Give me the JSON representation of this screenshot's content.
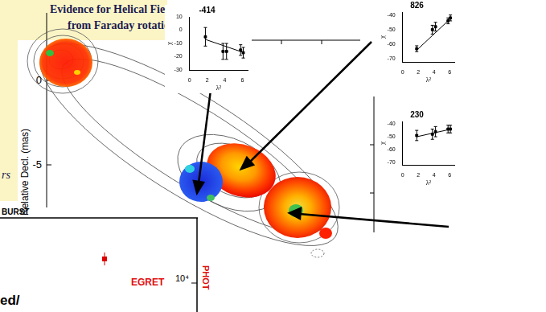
{
  "chart_data": [
    {
      "type": "scatter",
      "title": "-414",
      "xlabel": "λ²",
      "ylabel": "χ",
      "x": [
        1.8,
        3.8,
        4.2,
        5.8,
        6.1
      ],
      "values": [
        -5,
        -16,
        -16,
        -15,
        -17
      ],
      "errors": [
        7,
        6,
        6,
        4,
        4
      ],
      "fit_x": [
        1.8,
        6.2
      ],
      "fit_values": [
        -7,
        -17
      ],
      "xlim": [
        0,
        6.6
      ],
      "ylim": [
        -30,
        10
      ],
      "xticks": [
        0,
        2,
        4,
        6
      ],
      "yticks": [
        -30,
        -20,
        -10,
        0,
        10
      ],
      "color": "#000000",
      "marker": "square",
      "grid": false
    },
    {
      "type": "scatter",
      "title": "826",
      "xlabel": "λ²",
      "ylabel": "χ",
      "x": [
        1.8,
        3.8,
        4.2,
        5.8,
        6.1
      ],
      "values": [
        -63,
        -50,
        -48,
        -44,
        -42
      ],
      "errors": [
        2,
        3,
        3,
        2,
        2
      ],
      "fit_x": [
        1.8,
        6.2
      ],
      "fit_values": [
        -64,
        -42
      ],
      "xlim": [
        0,
        6.6
      ],
      "ylim": [
        -72,
        -38
      ],
      "xticks": [
        0,
        2,
        4,
        6
      ],
      "yticks": [
        -70,
        -60,
        -50,
        -40
      ],
      "color": "#000000",
      "marker": "square",
      "grid": false
    },
    {
      "type": "scatter",
      "title": "230",
      "xlabel": "λ²",
      "ylabel": "χ",
      "x": [
        1.8,
        3.8,
        4.2,
        5.8,
        6.1
      ],
      "values": [
        -49,
        -48,
        -46,
        -44,
        -44
      ],
      "errors": [
        4,
        4,
        4,
        3,
        3
      ],
      "fit_x": [
        1.8,
        6.2
      ],
      "fit_values": [
        -50,
        -44
      ],
      "xlim": [
        0,
        6.6
      ],
      "ylim": [
        -72,
        -38
      ],
      "xticks": [
        0,
        2,
        4,
        6
      ],
      "yticks": [
        -70,
        -60,
        -50,
        -40
      ],
      "color": "#000000",
      "marker": "square",
      "grid": false
    }
  ],
  "slide": {
    "title_lines": [
      "Evidence for Helical Fields",
      "from Faraday rotation"
    ],
    "map": {
      "ylabel": "Relative Decl. (mas)",
      "ylim": [
        -9,
        4
      ],
      "yticks": [
        0,
        -5
      ]
    },
    "fragments": {
      "left_italic": "rs",
      "burst": "BURST",
      "egret": "EGRET",
      "phot": "PHOT",
      "power": "10⁴",
      "bottom": "ed/"
    }
  }
}
